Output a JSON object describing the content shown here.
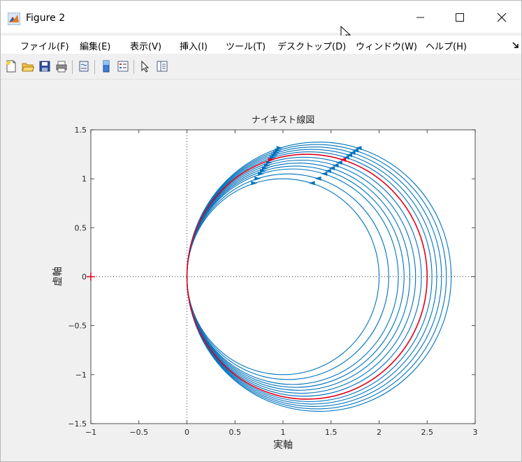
{
  "window": {
    "title": "Figure 2",
    "menu": [
      "ファイル(F)",
      "編集(E)",
      "表示(V)",
      "挿入(I)",
      "ツール(T)",
      "デスクトップ(D)",
      "ウィンドウ(W)",
      "ヘルプ(H)"
    ],
    "menu_overflow_icon": "dock-arrow-icon"
  },
  "toolbar": {
    "icons": [
      "new-figure-icon",
      "open-file-icon",
      "save-icon",
      "print-icon",
      "link-plot-icon",
      "insert-colorbar-icon",
      "insert-legend-icon",
      "edit-plot-arrow-icon",
      "property-inspector-icon"
    ]
  },
  "chart_data": {
    "type": "line",
    "title": "ナイキスト線図",
    "xlabel": "実軸",
    "ylabel": "虚軸",
    "xlim": [
      -1,
      3
    ],
    "ylim": [
      -1.5,
      1.5
    ],
    "xticks": [
      -1,
      -0.5,
      0,
      0.5,
      1,
      1.5,
      2,
      2.5,
      3
    ],
    "yticks": [
      -1.5,
      -1,
      -0.5,
      0,
      0.5,
      1,
      1.5
    ],
    "xtick_labels": [
      "−1",
      "−0.5",
      "0",
      "0.5",
      "1",
      "1.5",
      "2",
      "2.5",
      "3"
    ],
    "ytick_labels": [
      "−1.5",
      "−1",
      "−0.5",
      "0",
      "0.5",
      "1",
      "1.5"
    ],
    "grid": false,
    "reference_lines": {
      "x": 0,
      "y": 0,
      "style": "dotted"
    },
    "critical_point": {
      "x": -1,
      "y": 0,
      "marker": "+",
      "color": "#e0001b"
    },
    "colors": {
      "samples": "#0072bd",
      "nominal": "#e0001b"
    },
    "series": [
      {
        "diameter": 2.0,
        "color": "#0072bd"
      },
      {
        "diameter": 2.1,
        "color": "#0072bd"
      },
      {
        "diameter": 2.2,
        "color": "#0072bd"
      },
      {
        "diameter": 2.26,
        "color": "#0072bd"
      },
      {
        "diameter": 2.32,
        "color": "#0072bd"
      },
      {
        "diameter": 2.38,
        "color": "#0072bd"
      },
      {
        "diameter": 2.44,
        "color": "#0072bd"
      },
      {
        "diameter": 2.55,
        "color": "#0072bd"
      },
      {
        "diameter": 2.6,
        "color": "#0072bd"
      },
      {
        "diameter": 2.65,
        "color": "#0072bd"
      },
      {
        "diameter": 2.7,
        "color": "#0072bd"
      },
      {
        "diameter": 2.75,
        "color": "#0072bd"
      },
      {
        "diameter": 2.5,
        "color": "#e0001b"
      }
    ]
  }
}
